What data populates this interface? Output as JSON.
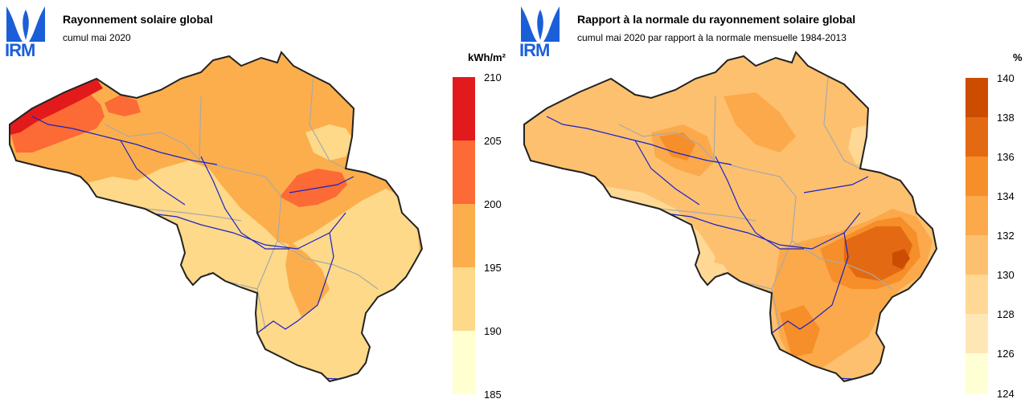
{
  "left_panel": {
    "logo": {
      "text": "IRM",
      "icon": "irm-logo-icon"
    },
    "title": "Rayonnement solaire global",
    "subtitle": "cumul mai 2020",
    "legend": {
      "unit": "kWh/m²",
      "ticks": [
        "210",
        "205",
        "200",
        "195",
        "190",
        "185"
      ],
      "colors": [
        "#e31a1c",
        "#fc6a35",
        "#fcae4c",
        "#fdd989",
        "#ffffd0"
      ]
    }
  },
  "right_panel": {
    "logo": {
      "text": "IRM",
      "icon": "irm-logo-icon"
    },
    "title": "Rapport à la normale du rayonnement solaire global",
    "subtitle": "cumul mai 2020 par rapport à la normale mensuelle 1984-2013",
    "legend": {
      "unit": "%",
      "ticks": [
        "140",
        "138",
        "136",
        "134",
        "132",
        "130",
        "128",
        "126",
        "124"
      ],
      "colors": [
        "#cc4c02",
        "#e36a12",
        "#f68e2a",
        "#fba94a",
        "#fdc06f",
        "#fed894",
        "#ffe7b5",
        "#ffffd4"
      ]
    }
  }
}
